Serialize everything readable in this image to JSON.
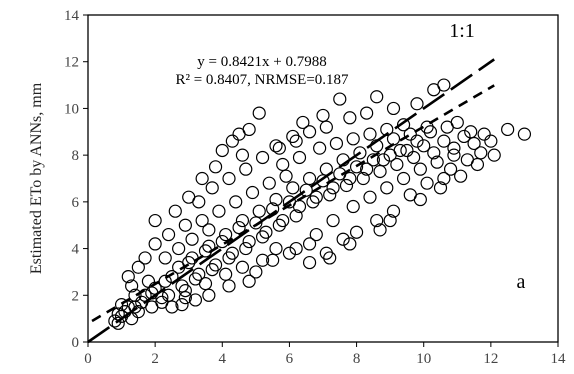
{
  "chart_data": {
    "type": "scatter",
    "title": "",
    "xlabel": "",
    "ylabel": "Estimated ETo by ANNs, mm",
    "xlim": [
      0,
      14
    ],
    "ylim": [
      0,
      14
    ],
    "x_ticks": [
      0,
      2,
      4,
      6,
      8,
      10,
      12,
      14
    ],
    "y_ticks": [
      0,
      2,
      4,
      6,
      8,
      10,
      12,
      14
    ],
    "grid": false,
    "legend": "none",
    "marker": "open-circle",
    "series": [
      {
        "points": [
          [
            0.8,
            0.9
          ],
          [
            1.0,
            1.1
          ],
          [
            1.2,
            1.5
          ],
          [
            1.5,
            1.3
          ],
          [
            1.7,
            2.0
          ],
          [
            2.0,
            2.3
          ],
          [
            2.2,
            1.7
          ],
          [
            2.5,
            2.8
          ],
          [
            2.8,
            2.4
          ],
          [
            3.0,
            3.4
          ],
          [
            3.2,
            2.7
          ],
          [
            3.5,
            3.9
          ],
          [
            3.7,
            3.1
          ],
          [
            4.0,
            4.3
          ],
          [
            4.2,
            3.6
          ],
          [
            4.5,
            4.9
          ],
          [
            4.7,
            4.0
          ],
          [
            5.0,
            5.1
          ],
          [
            5.2,
            4.5
          ],
          [
            5.5,
            5.7
          ],
          [
            5.7,
            5.0
          ],
          [
            6.0,
            6.0
          ],
          [
            6.2,
            5.4
          ],
          [
            6.5,
            6.5
          ],
          [
            6.7,
            6.0
          ],
          [
            7.0,
            6.9
          ],
          [
            7.2,
            6.3
          ],
          [
            7.5,
            7.2
          ],
          [
            7.7,
            6.7
          ],
          [
            8.0,
            7.5
          ],
          [
            8.2,
            7.0
          ],
          [
            8.5,
            7.8
          ],
          [
            8.7,
            7.3
          ],
          [
            9.0,
            8.0
          ],
          [
            9.2,
            7.6
          ],
          [
            9.5,
            8.2
          ],
          [
            9.7,
            7.9
          ],
          [
            10.0,
            8.4
          ],
          [
            10.3,
            8.1
          ],
          [
            10.6,
            8.6
          ],
          [
            10.9,
            8.3
          ],
          [
            11.2,
            8.8
          ],
          [
            11.5,
            8.5
          ],
          [
            11.8,
            8.9
          ],
          [
            12.5,
            9.1
          ],
          [
            13.0,
            8.9
          ],
          [
            10.3,
            10.8
          ],
          [
            10.6,
            11.0
          ],
          [
            7.5,
            10.4
          ],
          [
            8.6,
            10.5
          ],
          [
            4.0,
            8.2
          ],
          [
            4.3,
            8.6
          ],
          [
            4.5,
            8.9
          ],
          [
            4.8,
            9.1
          ],
          [
            5.1,
            9.8
          ],
          [
            3.8,
            7.5
          ],
          [
            3.4,
            7.0
          ],
          [
            3.0,
            6.2
          ],
          [
            2.6,
            5.6
          ],
          [
            2.0,
            5.2
          ],
          [
            1.5,
            3.2
          ],
          [
            1.2,
            2.8
          ],
          [
            5.6,
            8.4
          ],
          [
            6.1,
            8.8
          ],
          [
            6.6,
            9.0
          ],
          [
            7.1,
            9.2
          ],
          [
            7.8,
            9.6
          ],
          [
            8.3,
            9.8
          ],
          [
            9.1,
            10.0
          ],
          [
            9.8,
            10.2
          ],
          [
            6.6,
            3.4
          ],
          [
            7.1,
            3.8
          ],
          [
            7.6,
            4.4
          ],
          [
            8.0,
            4.7
          ],
          [
            8.6,
            5.2
          ],
          [
            9.1,
            5.6
          ],
          [
            9.6,
            6.3
          ],
          [
            10.1,
            6.8
          ],
          [
            10.6,
            7.0
          ],
          [
            11.1,
            7.1
          ],
          [
            11.6,
            7.6
          ],
          [
            12.1,
            8.0
          ],
          [
            5.0,
            3.0
          ],
          [
            5.5,
            3.5
          ],
          [
            4.8,
            2.6
          ],
          [
            4.2,
            2.4
          ],
          [
            3.6,
            2.0
          ],
          [
            3.2,
            1.8
          ],
          [
            2.8,
            1.6
          ],
          [
            2.5,
            1.5
          ],
          [
            6.2,
            4.0
          ],
          [
            6.8,
            4.6
          ],
          [
            7.3,
            5.2
          ],
          [
            7.9,
            5.8
          ],
          [
            8.4,
            6.2
          ],
          [
            8.9,
            6.6
          ],
          [
            9.4,
            7.0
          ],
          [
            9.9,
            7.4
          ],
          [
            10.4,
            7.7
          ],
          [
            10.9,
            8.0
          ],
          [
            5.8,
            7.6
          ],
          [
            6.3,
            7.9
          ],
          [
            6.9,
            8.3
          ],
          [
            7.4,
            8.5
          ],
          [
            7.9,
            8.7
          ],
          [
            8.4,
            8.9
          ],
          [
            8.9,
            9.1
          ],
          [
            9.4,
            9.3
          ],
          [
            3.4,
            5.2
          ],
          [
            3.9,
            5.6
          ],
          [
            4.4,
            6.0
          ],
          [
            4.9,
            6.4
          ],
          [
            5.4,
            6.8
          ],
          [
            5.9,
            7.1
          ],
          [
            2.3,
            3.6
          ],
          [
            2.7,
            4.0
          ],
          [
            3.1,
            4.4
          ],
          [
            3.6,
            4.8
          ],
          [
            1.8,
            2.6
          ],
          [
            1.4,
            2.0
          ],
          [
            1.0,
            1.6
          ],
          [
            0.9,
            1.2
          ],
          [
            1.3,
            1.0
          ],
          [
            1.9,
            1.5
          ],
          [
            2.4,
            2.0
          ],
          [
            2.9,
            2.2
          ],
          [
            3.3,
            2.9
          ],
          [
            3.8,
            3.3
          ],
          [
            4.3,
            3.8
          ],
          [
            4.8,
            4.3
          ],
          [
            5.3,
            4.7
          ],
          [
            5.8,
            5.2
          ],
          [
            6.3,
            5.8
          ],
          [
            6.8,
            6.2
          ],
          [
            7.3,
            6.6
          ],
          [
            7.8,
            7.0
          ],
          [
            8.3,
            7.4
          ],
          [
            8.8,
            7.8
          ],
          [
            9.3,
            8.2
          ],
          [
            9.8,
            8.6
          ],
          [
            10.2,
            9.0
          ],
          [
            10.7,
            9.2
          ],
          [
            11.0,
            9.4
          ],
          [
            11.4,
            9.0
          ],
          [
            11.7,
            8.1
          ],
          [
            12.0,
            8.6
          ],
          [
            11.3,
            7.8
          ],
          [
            10.8,
            7.4
          ],
          [
            10.5,
            6.6
          ],
          [
            9.9,
            6.1
          ],
          [
            9.0,
            5.2
          ],
          [
            8.7,
            4.8
          ],
          [
            7.8,
            4.2
          ],
          [
            7.2,
            3.6
          ],
          [
            6.6,
            4.2
          ],
          [
            6.0,
            3.8
          ],
          [
            5.6,
            4.0
          ],
          [
            5.2,
            3.5
          ],
          [
            4.6,
            3.2
          ],
          [
            4.1,
            2.9
          ],
          [
            3.5,
            2.5
          ],
          [
            2.9,
            1.9
          ],
          [
            2.2,
            1.9
          ],
          [
            1.6,
            1.7
          ],
          [
            1.1,
            1.3
          ],
          [
            0.9,
            0.8
          ],
          [
            1.4,
            1.5
          ],
          [
            1.9,
            2.1
          ],
          [
            2.3,
            2.6
          ],
          [
            2.7,
            3.2
          ],
          [
            3.1,
            3.6
          ],
          [
            3.6,
            4.1
          ],
          [
            4.1,
            4.6
          ],
          [
            4.6,
            5.2
          ],
          [
            5.1,
            5.6
          ],
          [
            5.6,
            6.1
          ],
          [
            6.1,
            6.6
          ],
          [
            6.6,
            7.0
          ],
          [
            7.1,
            7.4
          ],
          [
            7.6,
            7.8
          ],
          [
            8.1,
            8.1
          ],
          [
            8.6,
            8.4
          ],
          [
            9.1,
            8.7
          ],
          [
            9.6,
            8.9
          ],
          [
            10.1,
            9.2
          ],
          [
            4.2,
            7.0
          ],
          [
            4.7,
            7.4
          ],
          [
            5.2,
            7.9
          ],
          [
            5.7,
            8.3
          ],
          [
            6.2,
            8.6
          ],
          [
            3.3,
            6.0
          ],
          [
            3.7,
            6.6
          ],
          [
            2.9,
            5.0
          ],
          [
            2.4,
            4.6
          ],
          [
            2.0,
            4.2
          ],
          [
            1.7,
            3.6
          ],
          [
            1.3,
            2.4
          ],
          [
            6.4,
            9.4
          ],
          [
            7.0,
            9.7
          ],
          [
            4.6,
            8.0
          ]
        ]
      }
    ],
    "regression_line": {
      "slope": 0.8421,
      "intercept": 0.7988,
      "style": "short-dash"
    },
    "identity_line": {
      "slope": 1,
      "intercept": 0,
      "style": "long-dash"
    },
    "annotations": {
      "equation": "y = 0.8421x + 0.7988",
      "stats": "R² = 0.8407, NRMSE=0.187",
      "one_to_one": "1:1",
      "panel": "a"
    }
  }
}
